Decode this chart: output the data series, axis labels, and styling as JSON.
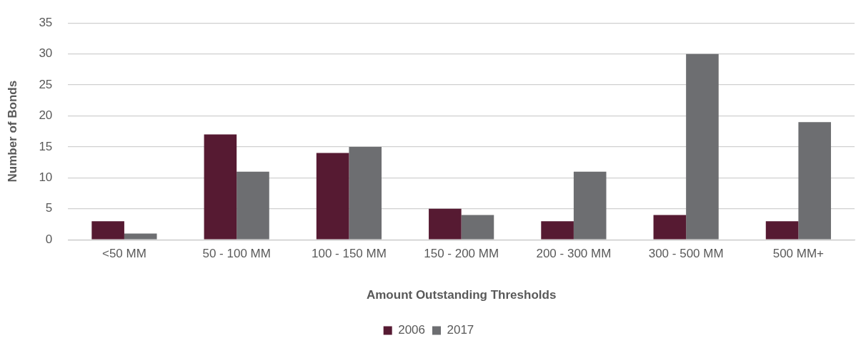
{
  "chart_data": {
    "type": "bar",
    "xlabel": "Amount Outstanding Thresholds",
    "ylabel": "Number of Bonds",
    "categories": [
      "<50 MM",
      "50 - 100 MM",
      "100 - 150 MM",
      "150 - 200 MM",
      "200 - 300 MM",
      "300 - 500 MM",
      "500 MM+"
    ],
    "series": [
      {
        "name": "2006",
        "color": "#561a32",
        "values": [
          3,
          17,
          14,
          5,
          3,
          4,
          3
        ]
      },
      {
        "name": "2017",
        "color": "#6d6e71",
        "values": [
          1,
          11,
          15,
          4,
          11,
          30,
          19
        ]
      }
    ],
    "ylim": [
      0,
      35
    ],
    "yticks": [
      0,
      5,
      10,
      15,
      20,
      25,
      30,
      35
    ],
    "grid": "y",
    "legend": "bottom"
  }
}
